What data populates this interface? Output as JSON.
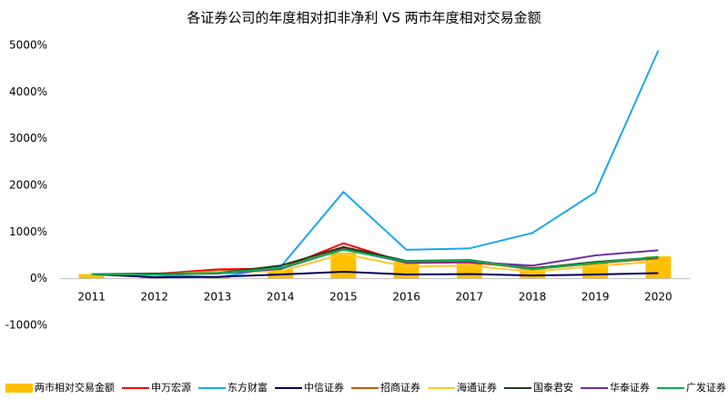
{
  "chart_data": {
    "type": "combo",
    "title": "各证券公司的年度相对扣非净利 VS 两市年度相对交易金额",
    "categories": [
      "2011",
      "2012",
      "2013",
      "2014",
      "2015",
      "2016",
      "2017",
      "2018",
      "2019",
      "2020"
    ],
    "ylim": [
      -1000,
      5000
    ],
    "yticks": [
      {
        "value": -1000,
        "label": "-1000%"
      },
      {
        "value": 0,
        "label": "0%"
      },
      {
        "value": 1000,
        "label": "1000%"
      },
      {
        "value": 2000,
        "label": "2000%"
      },
      {
        "value": 3000,
        "label": "3000%"
      },
      {
        "value": 4000,
        "label": "4000%"
      },
      {
        "value": 5000,
        "label": "5000%"
      }
    ],
    "grid": false,
    "legend": "bottom",
    "series": [
      {
        "name": "两市相对交易金额",
        "type": "bar",
        "color": "#FFC000",
        "values": [
          100,
          40,
          60,
          200,
          560,
          370,
          330,
          230,
          330,
          480
        ]
      },
      {
        "name": "申万宏源",
        "type": "line",
        "color": "#FF0000",
        "values": [
          100,
          100,
          200,
          220,
          760,
          340,
          350,
          230,
          330,
          440
        ]
      },
      {
        "name": "东方财富",
        "type": "line",
        "color": "#1AA7EC",
        "values": [
          100,
          80,
          30,
          250,
          1860,
          620,
          650,
          980,
          1850,
          4890
        ]
      },
      {
        "name": "中信证券",
        "type": "line",
        "color": "#000060",
        "values": [
          100,
          30,
          40,
          90,
          150,
          90,
          100,
          70,
          90,
          120
        ]
      },
      {
        "name": "招商证券",
        "type": "line",
        "color": "#C55A11",
        "values": [
          100,
          90,
          160,
          220,
          650,
          360,
          370,
          200,
          330,
          450
        ]
      },
      {
        "name": "海通证券",
        "type": "line",
        "color": "#FFC832",
        "values": [
          100,
          100,
          150,
          160,
          530,
          260,
          280,
          150,
          270,
          370
        ]
      },
      {
        "name": "国泰君安",
        "type": "line",
        "color": "#1E3B1E",
        "values": [
          100,
          110,
          120,
          280,
          680,
          380,
          400,
          220,
          360,
          460
        ]
      },
      {
        "name": "华泰证券",
        "type": "line",
        "color": "#7030A0",
        "values": [
          100,
          90,
          110,
          210,
          630,
          350,
          360,
          280,
          500,
          610
        ]
      },
      {
        "name": "广发证券",
        "type": "line",
        "color": "#00B050",
        "values": [
          100,
          90,
          120,
          230,
          620,
          370,
          390,
          210,
          340,
          470
        ]
      }
    ]
  }
}
